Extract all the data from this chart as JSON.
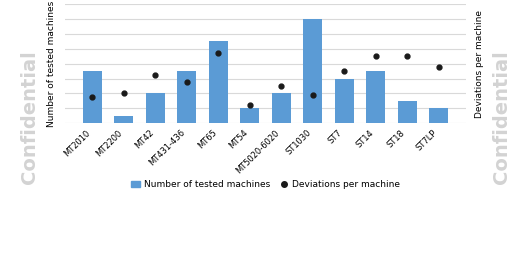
{
  "categories": [
    "MT2010",
    "MT2200",
    "MT42",
    "MT431-436",
    "MT65",
    "MT54",
    "MT5020-6020",
    "ST1030",
    "ST7",
    "ST14",
    "ST18",
    "ST7LP"
  ],
  "bar_values": [
    7,
    1,
    4,
    7,
    11,
    2,
    4,
    14,
    6,
    7,
    3,
    2
  ],
  "dot_values": [
    3.5,
    4.0,
    6.5,
    5.5,
    9.5,
    2.5,
    5.0,
    3.8,
    7.0,
    9.0,
    9.0,
    7.5
  ],
  "bar_color": "#5B9BD5",
  "dot_color": "#1a1a1a",
  "ylabel_left": "Number of tested machines",
  "ylabel_right": "Deviations per machine",
  "watermark": "Confidential",
  "legend_bar": "Number of tested machines",
  "legend_dot": "Deviations per machine",
  "ylim_left": [
    0,
    16
  ],
  "ylim_right": [
    0,
    16
  ],
  "background_color": "#ffffff",
  "plot_bg_color": "#ffffff",
  "grid_color": "#d9d9d9"
}
